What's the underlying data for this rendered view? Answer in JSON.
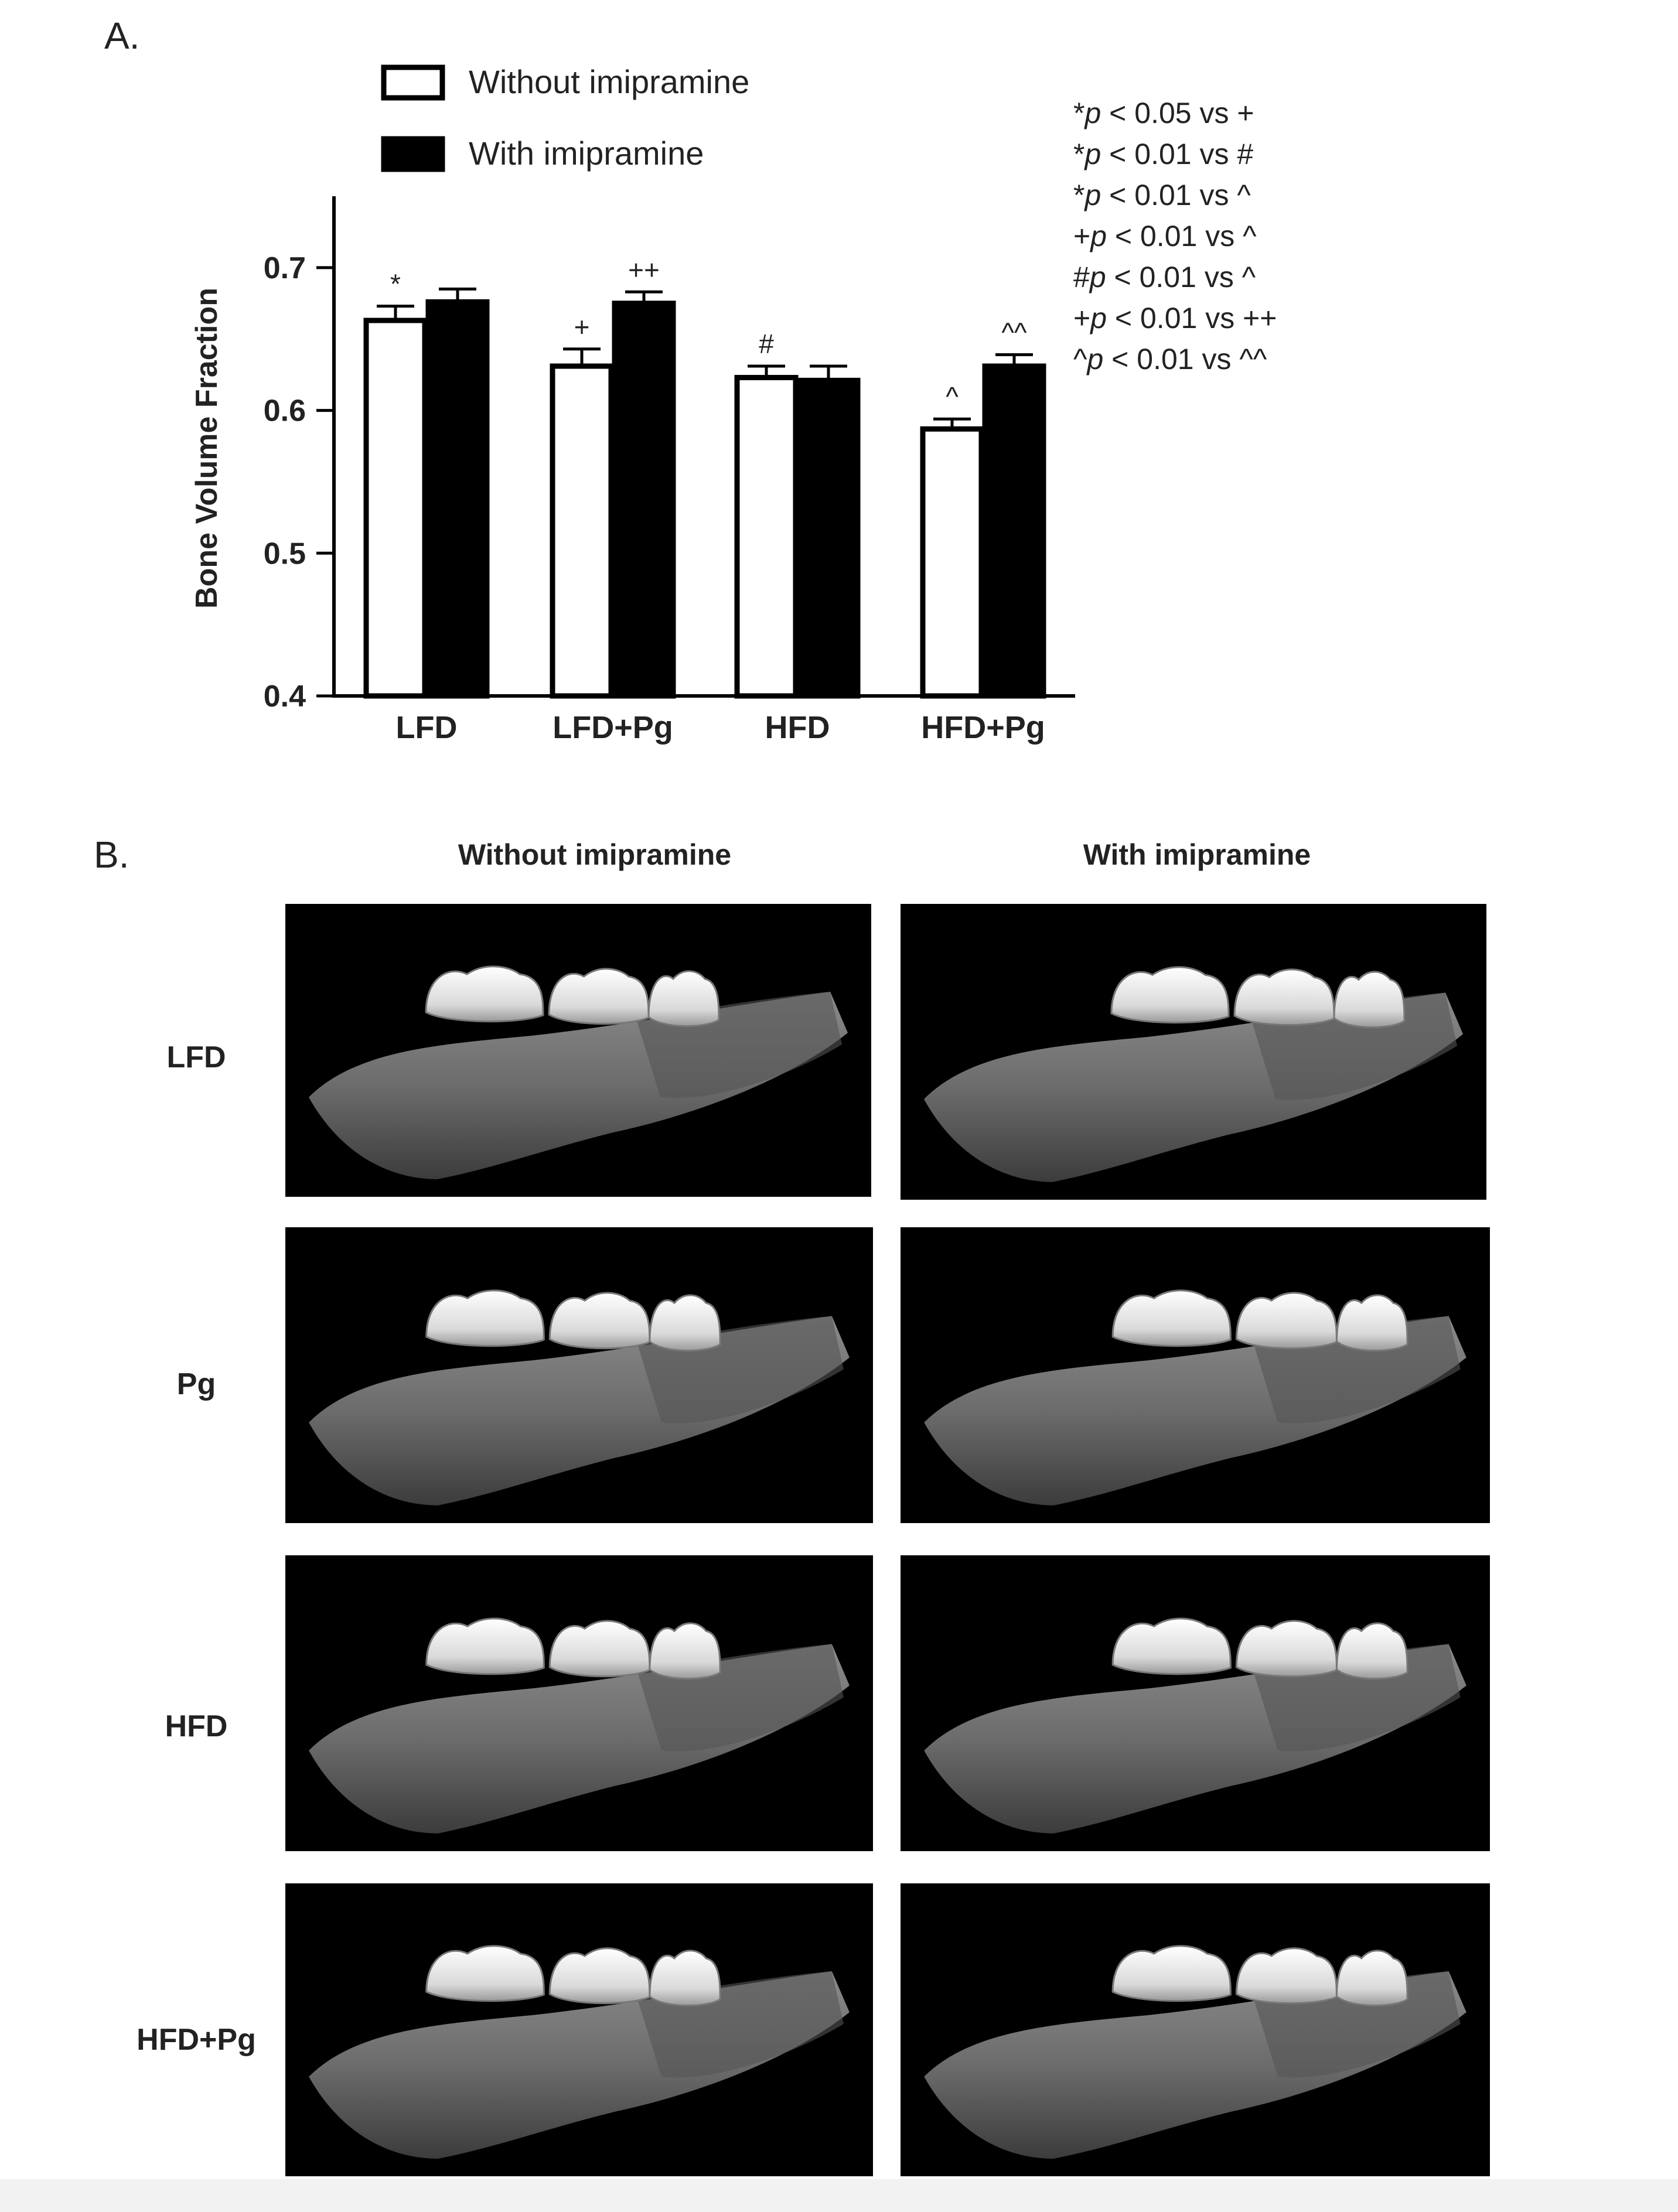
{
  "panel_a_label": "A.",
  "panel_b_label": "B.",
  "chart_data": {
    "type": "bar",
    "categories": [
      "LFD",
      "LFD+Pg",
      "HFD",
      "HFD+Pg"
    ],
    "series": [
      {
        "name": "Without imipramine",
        "fill": "#ffffff",
        "values": [
          0.663,
          0.631,
          0.623,
          0.587
        ],
        "errors": [
          0.01,
          0.012,
          0.008,
          0.007
        ],
        "annotations": [
          "*",
          "+",
          "#",
          "^"
        ]
      },
      {
        "name": "With imipramine",
        "fill": "#000000",
        "values": [
          0.676,
          0.675,
          0.621,
          0.631
        ],
        "errors": [
          0.009,
          0.008,
          0.01,
          0.008
        ],
        "annotations": [
          "",
          "++",
          "",
          "^^"
        ]
      }
    ],
    "ylabel": "Bone Volume Fraction",
    "ylim": [
      0.4,
      0.75
    ],
    "yticks": [
      "0.4",
      "0.5",
      "0.6",
      "0.7"
    ],
    "ytick_values": [
      0.4,
      0.5,
      0.6,
      0.7
    ],
    "legend_position": "top",
    "grid": false
  },
  "stats": [
    {
      "pre": "*",
      "p": "p",
      "post": " < 0.05 vs +"
    },
    {
      "pre": "*",
      "p": "p",
      "post": " < 0.01 vs #"
    },
    {
      "pre": "*",
      "p": "p",
      "post": " < 0.01 vs ^"
    },
    {
      "pre": "+",
      "p": "p",
      "post": " < 0.01 vs ^"
    },
    {
      "pre": "#",
      "p": "p",
      "post": " < 0.01 vs ^"
    },
    {
      "pre": "+",
      "p": "p",
      "post": " < 0.01 vs ++"
    },
    {
      "pre": "^",
      "p": "p",
      "post": " < 0.01 vs ^^"
    }
  ],
  "panel_b": {
    "columns": [
      "Without imipramine",
      "With imipramine"
    ],
    "rows": [
      "LFD",
      "Pg",
      "HFD",
      "HFD+Pg"
    ]
  }
}
